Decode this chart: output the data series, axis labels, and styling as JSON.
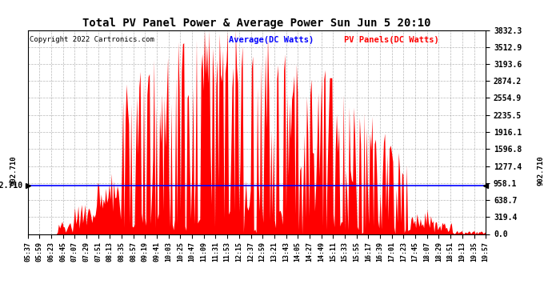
{
  "title": "Total PV Panel Power & Average Power Sun Jun 5 20:10",
  "copyright": "Copyright 2022 Cartronics.com",
  "legend_avg": "Average(DC Watts)",
  "legend_pv": "PV Panels(DC Watts)",
  "avg_value": 902.71,
  "y_max": 3832.3,
  "y_min": 0.0,
  "y_ticks": [
    0.0,
    319.4,
    638.7,
    958.1,
    1277.4,
    1596.8,
    1916.1,
    2235.5,
    2554.9,
    2874.2,
    3193.6,
    3512.9,
    3832.3
  ],
  "x_tick_labels": [
    "05:37",
    "05:59",
    "06:23",
    "06:45",
    "07:07",
    "07:29",
    "07:51",
    "08:13",
    "08:35",
    "08:57",
    "09:19",
    "09:41",
    "10:03",
    "10:25",
    "10:47",
    "11:09",
    "11:31",
    "11:53",
    "12:15",
    "12:37",
    "12:59",
    "13:21",
    "13:43",
    "14:05",
    "14:27",
    "14:49",
    "15:11",
    "15:33",
    "15:55",
    "16:17",
    "16:39",
    "17:01",
    "17:23",
    "17:45",
    "18:07",
    "18:29",
    "18:51",
    "19:13",
    "19:35",
    "19:57"
  ],
  "bg_color": "#ffffff",
  "fill_color": "#ff0000",
  "line_color": "#ff0000",
  "avg_line_color": "#0000ff",
  "grid_color": "#888888",
  "title_color": "#000000",
  "copyright_color": "#000000",
  "avg_label_color": "#0000ff",
  "pv_label_color": "#ff0000"
}
